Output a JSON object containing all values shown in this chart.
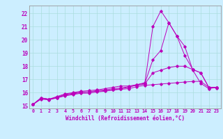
{
  "xlabel": "Windchill (Refroidissement éolien,°C)",
  "background_color": "#cceeff",
  "line_color": "#bb00bb",
  "grid_color": "#aadddd",
  "xlim": [
    -0.5,
    23.5
  ],
  "ylim": [
    14.8,
    22.6
  ],
  "yticks": [
    15,
    16,
    17,
    18,
    19,
    20,
    21,
    22
  ],
  "xticks": [
    0,
    1,
    2,
    3,
    4,
    5,
    6,
    7,
    8,
    9,
    10,
    11,
    12,
    13,
    14,
    15,
    16,
    17,
    18,
    19,
    20,
    21,
    22,
    23
  ],
  "series": [
    [
      15.1,
      15.6,
      15.5,
      15.6,
      15.8,
      15.9,
      16.0,
      16.05,
      16.1,
      16.15,
      16.2,
      16.3,
      16.4,
      16.6,
      16.75,
      21.0,
      22.2,
      21.3,
      20.3,
      19.5,
      17.7,
      16.7,
      16.3,
      16.4
    ],
    [
      15.1,
      15.6,
      15.5,
      15.7,
      15.9,
      16.0,
      16.1,
      16.15,
      16.2,
      16.3,
      16.4,
      16.5,
      16.5,
      16.6,
      16.7,
      18.5,
      19.2,
      21.3,
      20.3,
      18.8,
      17.75,
      17.5,
      16.4,
      16.4
    ],
    [
      15.1,
      15.55,
      15.5,
      15.65,
      15.85,
      15.95,
      16.05,
      16.05,
      16.15,
      16.2,
      16.3,
      16.35,
      16.45,
      16.55,
      16.65,
      17.5,
      17.7,
      17.9,
      18.0,
      18.0,
      17.75,
      17.5,
      16.4,
      16.4
    ],
    [
      15.1,
      15.5,
      15.45,
      15.6,
      15.75,
      15.85,
      15.95,
      15.95,
      16.05,
      16.1,
      16.2,
      16.25,
      16.3,
      16.45,
      16.55,
      16.6,
      16.65,
      16.7,
      16.75,
      16.8,
      16.85,
      16.85,
      16.4,
      16.35
    ]
  ],
  "figsize": [
    3.2,
    2.0
  ],
  "dpi": 100
}
